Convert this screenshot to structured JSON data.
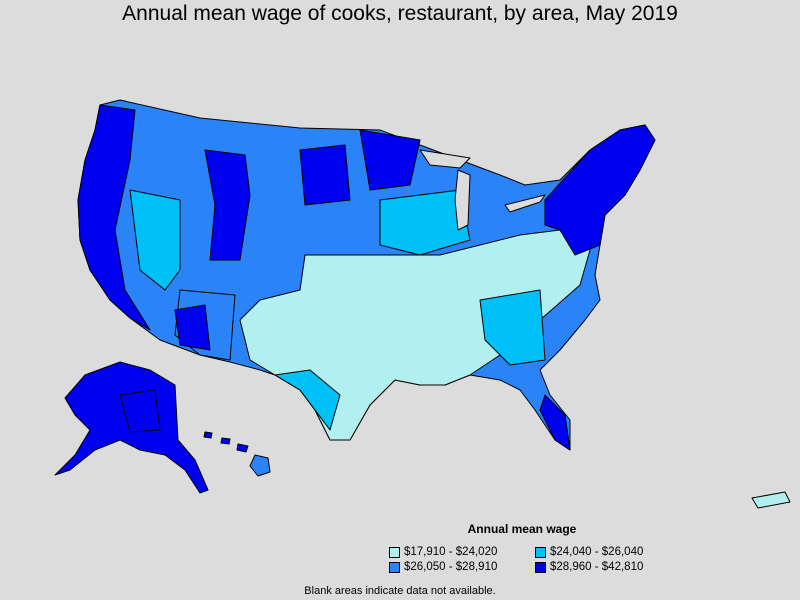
{
  "title": "Annual mean wage of cooks, restaurant, by area, May 2019",
  "legend": {
    "title": "Annual mean wage",
    "items": [
      {
        "label": "$17,910 - $24,020",
        "color": "#b2f0f0"
      },
      {
        "label": "$24,040 - $26,040",
        "color": "#00c0f8"
      },
      {
        "label": "$26,050 - $28,910",
        "color": "#2a84f8"
      },
      {
        "label": "$28,960 - $42,810",
        "color": "#0000f0"
      }
    ]
  },
  "footnote": "Blank areas indicate data not available.",
  "colors": {
    "background": "#dcdcdc",
    "border": "#000000",
    "tier1": "#b2f0f0",
    "tier2": "#00c0f8",
    "tier3": "#2a84f8",
    "tier4": "#0000f0"
  }
}
